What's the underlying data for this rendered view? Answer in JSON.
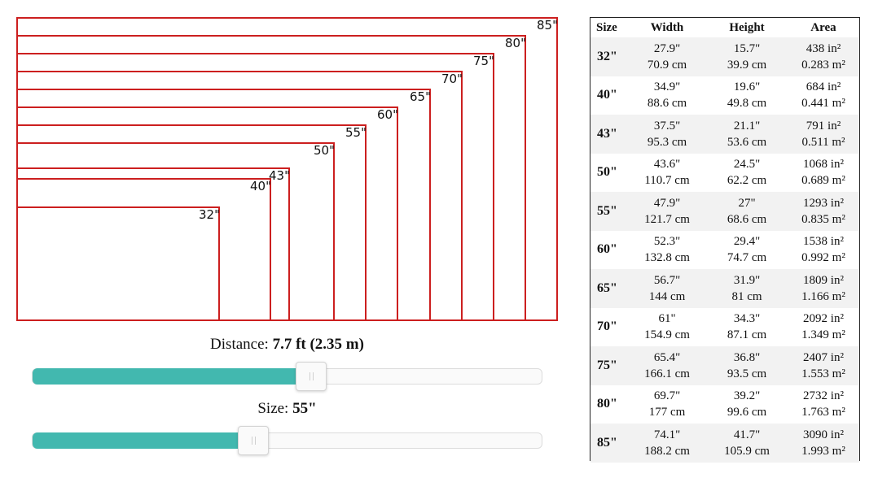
{
  "diagram": {
    "units": "in",
    "sizes": [
      {
        "size": 85,
        "label": "85\""
      },
      {
        "size": 80,
        "label": "80\""
      },
      {
        "size": 75,
        "label": "75\""
      },
      {
        "size": 70,
        "label": "70\""
      },
      {
        "size": 65,
        "label": "65\""
      },
      {
        "size": 60,
        "label": "60\""
      },
      {
        "size": 55,
        "label": "55\""
      },
      {
        "size": 50,
        "label": "50\""
      },
      {
        "size": 43,
        "label": "43\""
      },
      {
        "size": 40,
        "label": "40\""
      },
      {
        "size": 32,
        "label": "32\""
      }
    ]
  },
  "controls": {
    "distance": {
      "label": "Distance:",
      "value_text": "7.7 ft (2.35 m)",
      "fraction": 0.546
    },
    "size": {
      "label": "Size:",
      "value_text": "55\"",
      "fraction": 0.432
    }
  },
  "table": {
    "headers": {
      "size": "Size",
      "width": "Width",
      "height": "Height",
      "area": "Area"
    },
    "rows": [
      {
        "size": "32\"",
        "width_in": "27.9\"",
        "width_cm": "70.9 cm",
        "height_in": "15.7\"",
        "height_cm": "39.9 cm",
        "area_in": "438 in²",
        "area_m": "0.283 m²"
      },
      {
        "size": "40\"",
        "width_in": "34.9\"",
        "width_cm": "88.6 cm",
        "height_in": "19.6\"",
        "height_cm": "49.8 cm",
        "area_in": "684 in²",
        "area_m": "0.441 m²"
      },
      {
        "size": "43\"",
        "width_in": "37.5\"",
        "width_cm": "95.3 cm",
        "height_in": "21.1\"",
        "height_cm": "53.6 cm",
        "area_in": "791 in²",
        "area_m": "0.511 m²"
      },
      {
        "size": "50\"",
        "width_in": "43.6\"",
        "width_cm": "110.7 cm",
        "height_in": "24.5\"",
        "height_cm": "62.2 cm",
        "area_in": "1068 in²",
        "area_m": "0.689 m²"
      },
      {
        "size": "55\"",
        "width_in": "47.9\"",
        "width_cm": "121.7 cm",
        "height_in": "27\"",
        "height_cm": "68.6 cm",
        "area_in": "1293 in²",
        "area_m": "0.835 m²"
      },
      {
        "size": "60\"",
        "width_in": "52.3\"",
        "width_cm": "132.8 cm",
        "height_in": "29.4\"",
        "height_cm": "74.7 cm",
        "area_in": "1538 in²",
        "area_m": "0.992 m²"
      },
      {
        "size": "65\"",
        "width_in": "56.7\"",
        "width_cm": "144 cm",
        "height_in": "31.9\"",
        "height_cm": "81 cm",
        "area_in": "1809 in²",
        "area_m": "1.166 m²"
      },
      {
        "size": "70\"",
        "width_in": "61\"",
        "width_cm": "154.9 cm",
        "height_in": "34.3\"",
        "height_cm": "87.1 cm",
        "area_in": "2092 in²",
        "area_m": "1.349 m²"
      },
      {
        "size": "75\"",
        "width_in": "65.4\"",
        "width_cm": "166.1 cm",
        "height_in": "36.8\"",
        "height_cm": "93.5 cm",
        "area_in": "2407 in²",
        "area_m": "1.553 m²"
      },
      {
        "size": "80\"",
        "width_in": "69.7\"",
        "width_cm": "177 cm",
        "height_in": "39.2\"",
        "height_cm": "99.6 cm",
        "area_in": "2732 in²",
        "area_m": "1.763 m²"
      },
      {
        "size": "85\"",
        "width_in": "74.1\"",
        "width_cm": "188.2 cm",
        "height_in": "41.7\"",
        "height_cm": "105.9 cm",
        "area_in": "3090 in²",
        "area_m": "1.993 m²"
      }
    ]
  },
  "colors": {
    "rect_stroke": "#cc1f1f",
    "slider_fill": "#42b8af"
  }
}
